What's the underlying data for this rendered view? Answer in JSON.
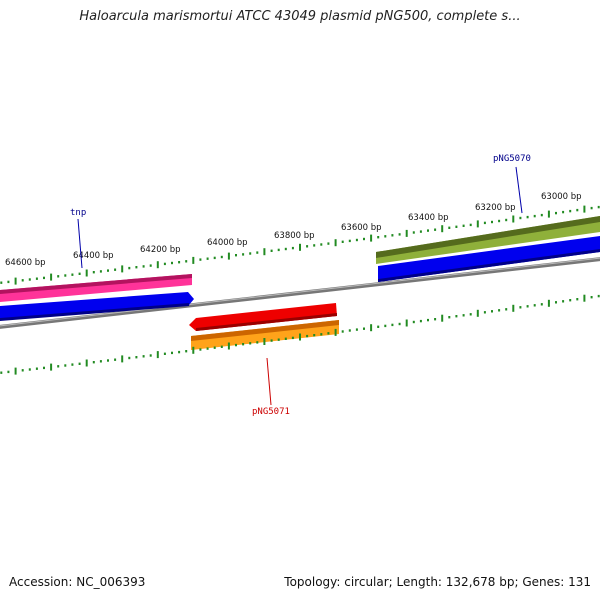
{
  "title": "Haloarcula marismortui ATCC 43049 plasmid pNG500, complete s...",
  "footer": {
    "accession": "Accession: NC_006393",
    "summary": "Topology: circular; Length: 132,678 bp; Genes: 131"
  },
  "position_labels": [
    "64600 bp",
    "64400 bp",
    "64200 bp",
    "64000 bp",
    "63800 bp",
    "63600 bp",
    "63400 bp",
    "63200 bp",
    "63000 bp"
  ],
  "gene_labels": [
    {
      "name": "tnp",
      "color": "#00008b"
    },
    {
      "name": "pNG5070",
      "color": "#00008b"
    },
    {
      "name": "pNG5071",
      "color": "#cc0000"
    }
  ],
  "colors": {
    "backbone": "#808080",
    "ticks": "#228b22",
    "cds": "#0000ff",
    "forward_feature": "#ff3399",
    "forward_feature_2": "#6b8e23",
    "reverse_cds": "#ee0000",
    "reverse_feature": "#ff9900"
  }
}
